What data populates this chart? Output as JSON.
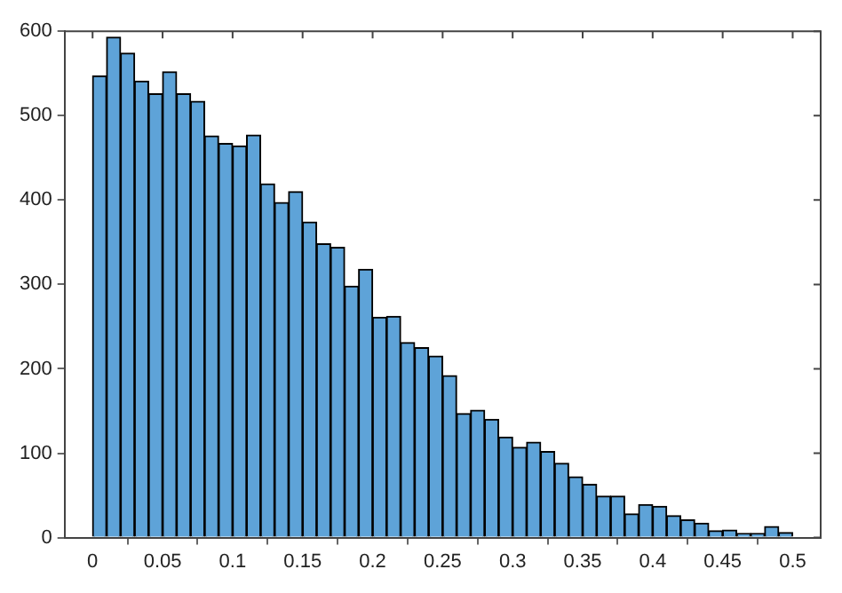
{
  "chart_data": {
    "type": "histogram",
    "bins": [
      0,
      0.01,
      0.02,
      0.03,
      0.04,
      0.05,
      0.06,
      0.07,
      0.08,
      0.09,
      0.1,
      0.11,
      0.12,
      0.13,
      0.14,
      0.15,
      0.16,
      0.17,
      0.18,
      0.19,
      0.2,
      0.21,
      0.22,
      0.23,
      0.24,
      0.25,
      0.26,
      0.27,
      0.28,
      0.29,
      0.3,
      0.31,
      0.32,
      0.33,
      0.34,
      0.35,
      0.36,
      0.37,
      0.38,
      0.39,
      0.4,
      0.41,
      0.42,
      0.43,
      0.44,
      0.45,
      0.46,
      0.47,
      0.48,
      0.49,
      0.5
    ],
    "values": [
      547,
      593,
      574,
      541,
      526,
      552,
      526,
      517,
      476,
      467,
      464,
      477,
      419,
      397,
      410,
      374,
      348,
      344,
      298,
      318,
      261,
      262,
      231,
      225,
      215,
      192,
      147,
      151,
      140,
      119,
      107,
      113,
      102,
      88,
      72,
      63,
      49,
      49,
      28,
      39,
      37,
      26,
      21,
      17,
      8,
      9,
      5,
      5,
      13,
      6
    ],
    "color": "#5ea3d8",
    "xlim": [
      -0.02,
      0.52
    ],
    "xticks": [
      0,
      0.05,
      0.1,
      0.15,
      0.2,
      0.25,
      0.3,
      0.35,
      0.4,
      0.45,
      0.5
    ],
    "ylim": [
      0,
      600
    ],
    "yticks": [
      0,
      100,
      200,
      300,
      400,
      500,
      600
    ],
    "grid": false
  }
}
